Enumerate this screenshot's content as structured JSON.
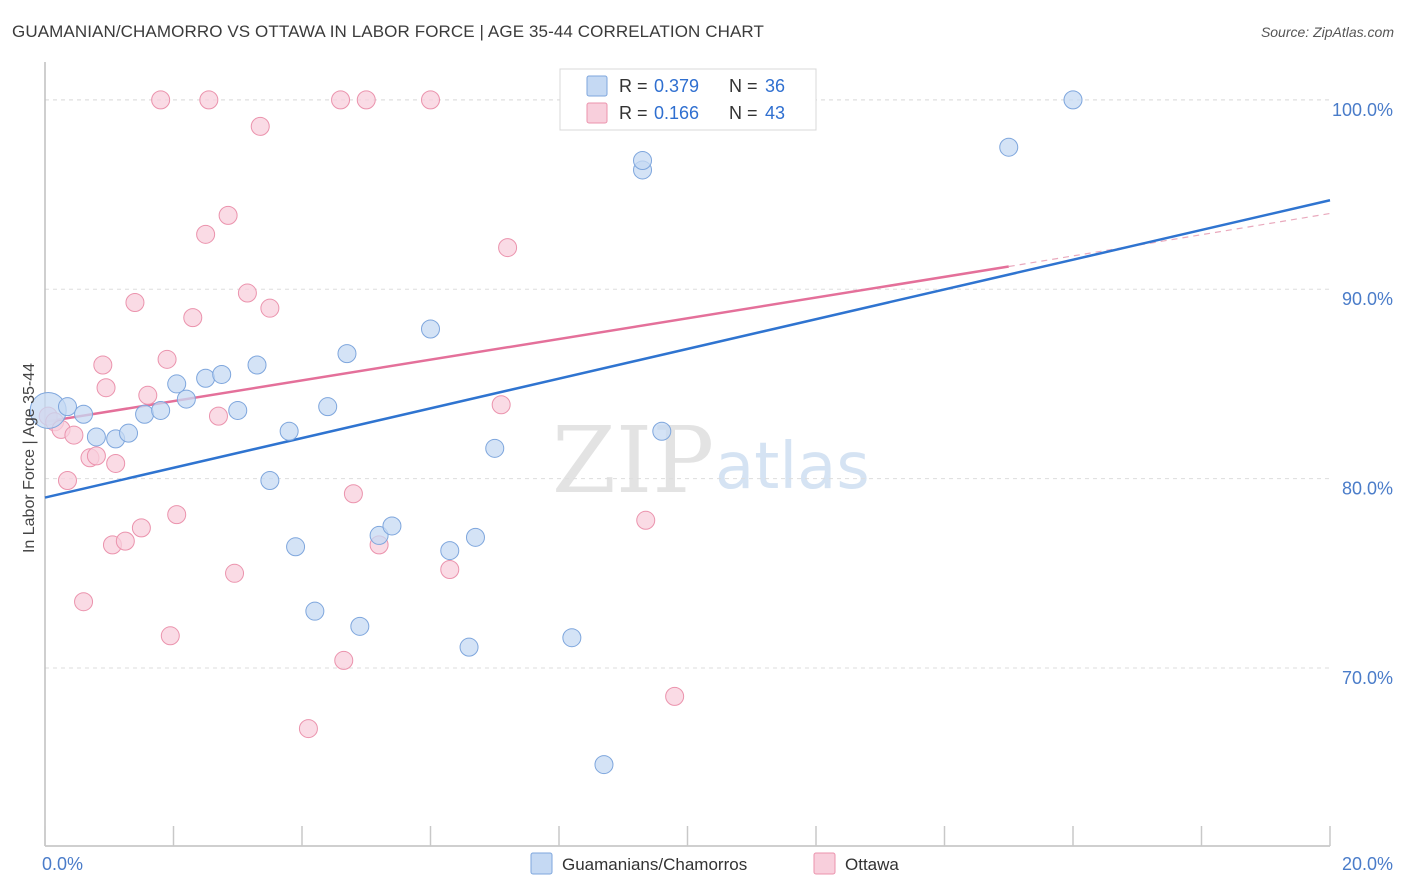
{
  "title": "GUAMANIAN/CHAMORRO VS OTTAWA IN LABOR FORCE | AGE 35-44 CORRELATION CHART",
  "source": "Source: ZipAtlas.com",
  "watermark": {
    "zip": "ZIP",
    "atlas": "atlas"
  },
  "colors": {
    "blue_fill": "#c5d9f3",
    "blue_stroke": "#7ea6dd",
    "blue_line": "#2f74d0",
    "pink_fill": "#f8cfdc",
    "pink_stroke": "#eb93ad",
    "pink_line": "#e4709a",
    "grid": "#dddddd",
    "tick_text": "#4a7cc9"
  },
  "legend": {
    "rows": [
      {
        "r_label": "R =",
        "r_value": "0.379",
        "n_label": "N =",
        "n_value": "36"
      },
      {
        "r_label": "R =",
        "r_value": "0.166",
        "n_label": "N =",
        "n_value": "43"
      }
    ]
  },
  "bottom_legend": [
    "Guamanians/Chamorros",
    "Ottawa"
  ],
  "chart_data": {
    "type": "scatter",
    "title": "GUAMANIAN/CHAMORRO VS OTTAWA IN LABOR FORCE | AGE 35-44 CORRELATION CHART",
    "xlabel": "",
    "ylabel": "In Labor Force | Age 35-44",
    "xlim": [
      0.0,
      20.0
    ],
    "ylim": [
      60.6,
      102.0
    ],
    "x_tick_labels": [
      "0.0%",
      "20.0%"
    ],
    "y_ticks": [
      70.0,
      80.0,
      90.0,
      100.0
    ],
    "y_tick_labels": [
      "70.0%",
      "80.0%",
      "90.0%",
      "100.0%"
    ],
    "grid": true,
    "legend_position": "top-center",
    "series": [
      {
        "name": "Guamanians/Chamorros",
        "r": 0.379,
        "n": 36,
        "trend": {
          "x": [
            0.0,
            20.0
          ],
          "y": [
            79.0,
            94.7
          ]
        },
        "points": [
          [
            0.05,
            83.6
          ],
          [
            0.35,
            83.8
          ],
          [
            0.6,
            83.4
          ],
          [
            0.8,
            82.2
          ],
          [
            1.1,
            82.1
          ],
          [
            1.3,
            82.4
          ],
          [
            1.55,
            83.4
          ],
          [
            1.8,
            83.6
          ],
          [
            2.05,
            85.0
          ],
          [
            2.2,
            84.2
          ],
          [
            2.5,
            85.3
          ],
          [
            2.75,
            85.5
          ],
          [
            3.0,
            83.6
          ],
          [
            3.3,
            86.0
          ],
          [
            3.5,
            79.9
          ],
          [
            3.8,
            82.5
          ],
          [
            3.9,
            76.4
          ],
          [
            4.2,
            73.0
          ],
          [
            4.4,
            83.8
          ],
          [
            4.7,
            86.6
          ],
          [
            4.9,
            72.2
          ],
          [
            5.2,
            77.0
          ],
          [
            5.4,
            77.5
          ],
          [
            6.0,
            87.9
          ],
          [
            6.3,
            76.2
          ],
          [
            6.6,
            71.1
          ],
          [
            6.7,
            76.9
          ],
          [
            7.0,
            81.6
          ],
          [
            8.2,
            71.6
          ],
          [
            8.7,
            64.9
          ],
          [
            9.3,
            96.3
          ],
          [
            9.3,
            96.8
          ],
          [
            9.6,
            82.5
          ],
          [
            11.4,
            100.0
          ],
          [
            15.0,
            97.5
          ],
          [
            16.0,
            100.0
          ]
        ]
      },
      {
        "name": "Ottawa",
        "r": 0.166,
        "n": 43,
        "trend": {
          "x": [
            0.0,
            15.0
          ],
          "y": [
            83.0,
            91.2
          ]
        },
        "trend_dashed": {
          "x": [
            15.0,
            20.0
          ],
          "y": [
            91.2,
            94.0
          ]
        },
        "points": [
          [
            0.05,
            83.3
          ],
          [
            0.15,
            83.0
          ],
          [
            0.25,
            82.6
          ],
          [
            0.35,
            79.9
          ],
          [
            0.45,
            82.3
          ],
          [
            0.6,
            73.5
          ],
          [
            0.7,
            81.1
          ],
          [
            0.8,
            81.2
          ],
          [
            0.9,
            86.0
          ],
          [
            0.95,
            84.8
          ],
          [
            1.1,
            80.8
          ],
          [
            1.05,
            76.5
          ],
          [
            1.25,
            76.7
          ],
          [
            1.4,
            89.3
          ],
          [
            1.5,
            77.4
          ],
          [
            1.6,
            84.4
          ],
          [
            1.8,
            100.0
          ],
          [
            1.9,
            86.3
          ],
          [
            1.95,
            71.7
          ],
          [
            2.05,
            78.1
          ],
          [
            2.3,
            88.5
          ],
          [
            2.5,
            92.9
          ],
          [
            2.55,
            100.0
          ],
          [
            2.7,
            83.3
          ],
          [
            2.85,
            93.9
          ],
          [
            2.95,
            75.0
          ],
          [
            3.15,
            89.8
          ],
          [
            3.35,
            98.6
          ],
          [
            3.5,
            89.0
          ],
          [
            4.1,
            66.8
          ],
          [
            4.6,
            100.0
          ],
          [
            4.65,
            70.4
          ],
          [
            4.8,
            79.2
          ],
          [
            5.0,
            100.0
          ],
          [
            5.2,
            76.5
          ],
          [
            6.0,
            100.0
          ],
          [
            6.3,
            75.2
          ],
          [
            7.1,
            83.9
          ],
          [
            7.2,
            92.2
          ],
          [
            8.3,
            100.0
          ],
          [
            8.4,
            100.0
          ],
          [
            9.35,
            77.8
          ],
          [
            9.8,
            68.5
          ]
        ]
      }
    ]
  }
}
